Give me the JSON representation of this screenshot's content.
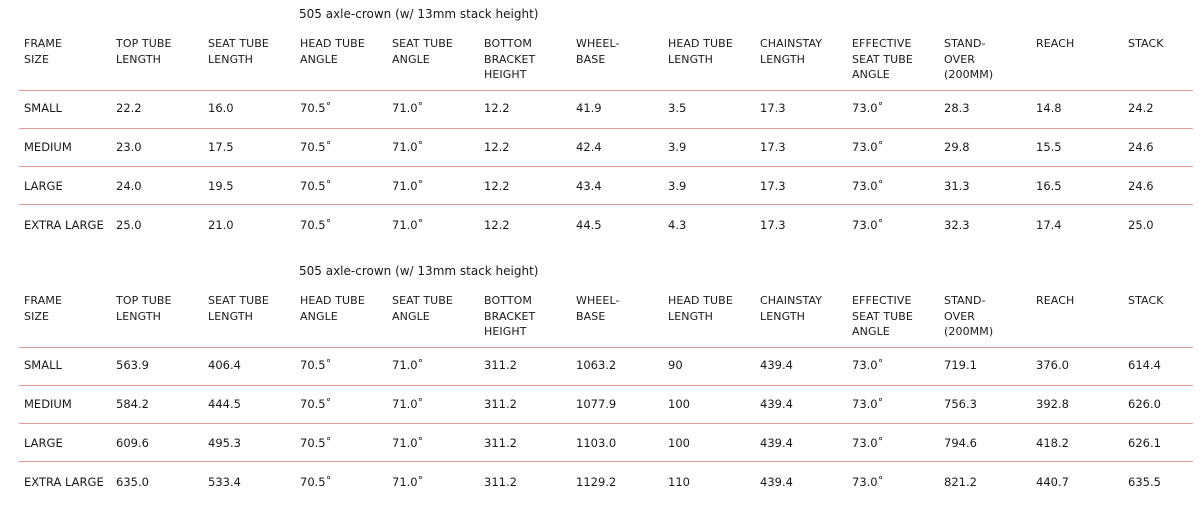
{
  "columns": [
    [
      "FRAME",
      "SIZE"
    ],
    [
      "TOP TUBE",
      "LENGTH"
    ],
    [
      "SEAT TUBE",
      "LENGTH"
    ],
    [
      "HEAD TUBE",
      "ANGLE"
    ],
    [
      "SEAT TUBE",
      "ANGLE"
    ],
    [
      "BOTTOM",
      "BRACKET",
      "HEIGHT"
    ],
    [
      "WHEEL-",
      "BASE"
    ],
    [
      "HEAD TUBE",
      "LENGTH"
    ],
    [
      "CHAINSTAY",
      "LENGTH"
    ],
    [
      "EFFECTIVE",
      "SEAT TUBE",
      "ANGLE"
    ],
    [
      "STAND-",
      "OVER",
      "(200mm)"
    ],
    [
      "REACH"
    ],
    [
      "STACK"
    ]
  ],
  "tables": [
    {
      "caption": "505 axle-crown (w/ 13mm stack height)",
      "rows": [
        [
          "SMALL",
          "22.2",
          "16.0",
          "70.5˚",
          "71.0˚",
          "12.2",
          "41.9",
          "3.5",
          "17.3",
          "73.0˚",
          "28.3",
          "14.8",
          "24.2"
        ],
        [
          "MEDIUM",
          "23.0",
          "17.5",
          "70.5˚",
          "71.0˚",
          "12.2",
          "42.4",
          "3.9",
          "17.3",
          "73.0˚",
          "29.8",
          "15.5",
          "24.6"
        ],
        [
          "LARGE",
          "24.0",
          "19.5",
          "70.5˚",
          "71.0˚",
          "12.2",
          "43.4",
          "3.9",
          "17.3",
          "73.0˚",
          "31.3",
          "16.5",
          "24.6"
        ],
        [
          "EXTRA LARGE",
          "25.0",
          "21.0",
          "70.5˚",
          "71.0˚",
          "12.2",
          "44.5",
          "4.3",
          "17.3",
          "73.0˚",
          "32.3",
          "17.4",
          "25.0"
        ]
      ]
    },
    {
      "caption": "505 axle-crown (w/ 13mm stack height)",
      "rows": [
        [
          "SMALL",
          "563.9",
          "406.4",
          "70.5˚",
          "71.0˚",
          "311.2",
          "1063.2",
          "90",
          "439.4",
          "73.0˚",
          "719.1",
          "376.0",
          "614.4"
        ],
        [
          "MEDIUM",
          "584.2",
          "444.5",
          "70.5˚",
          "71.0˚",
          "311.2",
          "1077.9",
          "100",
          "439.4",
          "73.0˚",
          "756.3",
          "392.8",
          "626.0"
        ],
        [
          "LARGE",
          "609.6",
          "495.3",
          "70.5˚",
          "71.0˚",
          "311.2",
          "1103.0",
          "100",
          "439.4",
          "73.0˚",
          "794.6",
          "418.2",
          "626.1"
        ],
        [
          "EXTRA LARGE",
          "635.0",
          "533.4",
          "70.5˚",
          "71.0˚",
          "311.2",
          "1129.2",
          "110",
          "439.4",
          "73.0˚",
          "821.2",
          "440.7",
          "635.5"
        ]
      ]
    }
  ]
}
